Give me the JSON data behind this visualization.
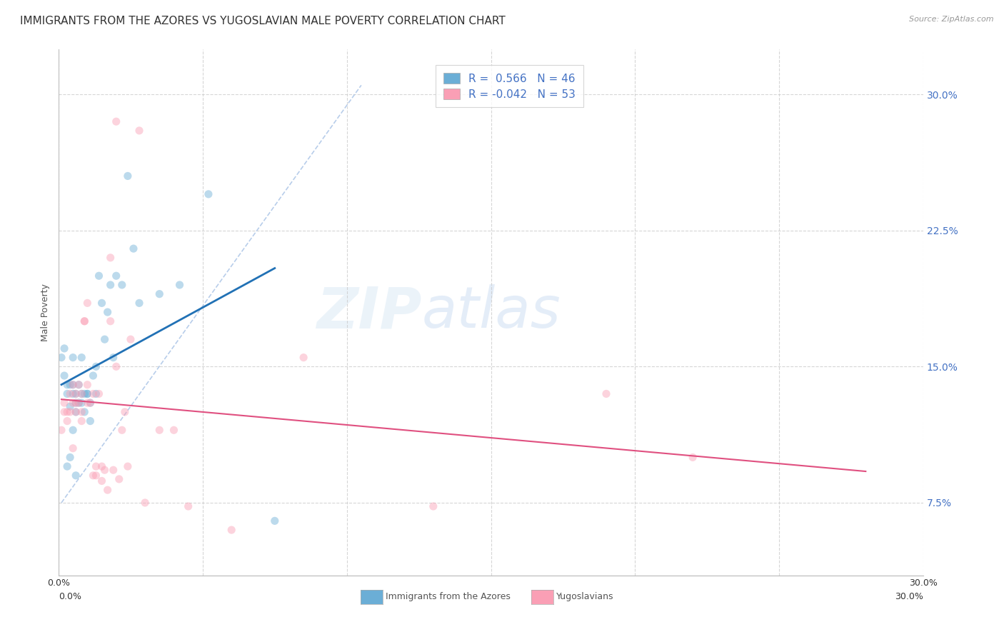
{
  "title": "IMMIGRANTS FROM THE AZORES VS YUGOSLAVIAN MALE POVERTY CORRELATION CHART",
  "source": "Source: ZipAtlas.com",
  "ylabel": "Male Poverty",
  "yticks": [
    "7.5%",
    "15.0%",
    "22.5%",
    "30.0%"
  ],
  "ytick_vals": [
    0.075,
    0.15,
    0.225,
    0.3
  ],
  "xlim": [
    0.0,
    0.3
  ],
  "ylim": [
    0.035,
    0.325
  ],
  "color_blue": "#6baed6",
  "color_pink": "#fa9fb5",
  "regression_line_color_blue": "#2171b5",
  "regression_line_color_pink": "#e05080",
  "diagonal_line_color": "#b0c8e8",
  "watermark_zip": "ZIP",
  "watermark_atlas": "atlas",
  "legend_label1": "Immigrants from the Azores",
  "legend_label2": "Yugoslavians",
  "background_color": "#ffffff",
  "grid_color": "#cccccc",
  "title_fontsize": 11,
  "axis_label_fontsize": 9,
  "tick_fontsize": 9,
  "marker_size": 65,
  "marker_alpha": 0.45,
  "azores_x": [
    0.001,
    0.002,
    0.002,
    0.003,
    0.003,
    0.003,
    0.004,
    0.004,
    0.004,
    0.005,
    0.005,
    0.005,
    0.005,
    0.006,
    0.006,
    0.006,
    0.006,
    0.007,
    0.007,
    0.008,
    0.008,
    0.008,
    0.009,
    0.009,
    0.01,
    0.01,
    0.011,
    0.011,
    0.012,
    0.013,
    0.013,
    0.014,
    0.015,
    0.016,
    0.017,
    0.018,
    0.019,
    0.02,
    0.022,
    0.024,
    0.026,
    0.028,
    0.035,
    0.042,
    0.052,
    0.075
  ],
  "azores_y": [
    0.155,
    0.16,
    0.145,
    0.14,
    0.135,
    0.095,
    0.14,
    0.128,
    0.1,
    0.155,
    0.14,
    0.135,
    0.115,
    0.135,
    0.13,
    0.125,
    0.09,
    0.14,
    0.13,
    0.155,
    0.135,
    0.13,
    0.135,
    0.125,
    0.135,
    0.135,
    0.13,
    0.12,
    0.145,
    0.15,
    0.135,
    0.2,
    0.185,
    0.165,
    0.18,
    0.195,
    0.155,
    0.2,
    0.195,
    0.255,
    0.215,
    0.185,
    0.19,
    0.195,
    0.245,
    0.065
  ],
  "yugo_x": [
    0.001,
    0.002,
    0.002,
    0.003,
    0.003,
    0.004,
    0.004,
    0.005,
    0.005,
    0.005,
    0.006,
    0.006,
    0.006,
    0.007,
    0.007,
    0.008,
    0.008,
    0.008,
    0.009,
    0.009,
    0.01,
    0.01,
    0.01,
    0.011,
    0.012,
    0.012,
    0.013,
    0.013,
    0.014,
    0.015,
    0.015,
    0.016,
    0.017,
    0.018,
    0.018,
    0.019,
    0.02,
    0.02,
    0.021,
    0.022,
    0.023,
    0.024,
    0.025,
    0.028,
    0.03,
    0.035,
    0.04,
    0.045,
    0.06,
    0.085,
    0.13,
    0.19,
    0.22
  ],
  "yugo_y": [
    0.115,
    0.125,
    0.13,
    0.125,
    0.12,
    0.125,
    0.135,
    0.14,
    0.13,
    0.105,
    0.13,
    0.135,
    0.125,
    0.13,
    0.14,
    0.135,
    0.12,
    0.125,
    0.175,
    0.175,
    0.13,
    0.185,
    0.14,
    0.13,
    0.135,
    0.09,
    0.095,
    0.09,
    0.135,
    0.095,
    0.087,
    0.093,
    0.082,
    0.21,
    0.175,
    0.093,
    0.15,
    0.285,
    0.088,
    0.115,
    0.125,
    0.095,
    0.165,
    0.28,
    0.075,
    0.115,
    0.115,
    0.073,
    0.06,
    0.155,
    0.073,
    0.135,
    0.1
  ]
}
